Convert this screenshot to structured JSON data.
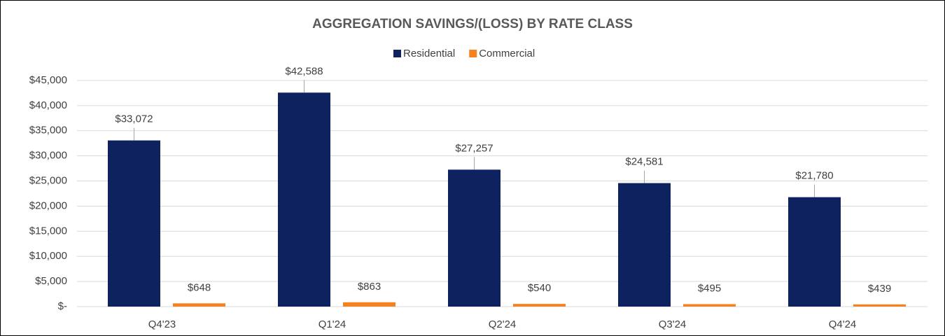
{
  "chart_data": {
    "type": "bar",
    "title": "AGGREGATION SAVINGS/(LOSS) BY RATE CLASS",
    "categories": [
      "Q4'23",
      "Q1'24",
      "Q2'24",
      "Q3'24",
      "Q4'24"
    ],
    "series": [
      {
        "name": "Residential",
        "color": "#0f2260",
        "values": [
          33072,
          42588,
          27257,
          24581,
          21780
        ],
        "value_labels": [
          "$33,072",
          "$42,588",
          "$27,257",
          "$24,581",
          "$21,780"
        ]
      },
      {
        "name": "Commercial",
        "color": "#f58220",
        "values": [
          648,
          863,
          540,
          495,
          439
        ],
        "value_labels": [
          "$648",
          "$863",
          "$540",
          "$495",
          "$439"
        ]
      }
    ],
    "ylim": [
      0,
      45000
    ],
    "yticks": [
      {
        "value": 0,
        "label": "$-"
      },
      {
        "value": 5000,
        "label": "$5,000"
      },
      {
        "value": 10000,
        "label": "$10,000"
      },
      {
        "value": 15000,
        "label": "$15,000"
      },
      {
        "value": 20000,
        "label": "$20,000"
      },
      {
        "value": 25000,
        "label": "$25,000"
      },
      {
        "value": 30000,
        "label": "$30,000"
      },
      {
        "value": 35000,
        "label": "$35,000"
      },
      {
        "value": 40000,
        "label": "$40,000"
      },
      {
        "value": 45000,
        "label": "$45,000"
      }
    ],
    "grid": true,
    "legend": "top"
  }
}
